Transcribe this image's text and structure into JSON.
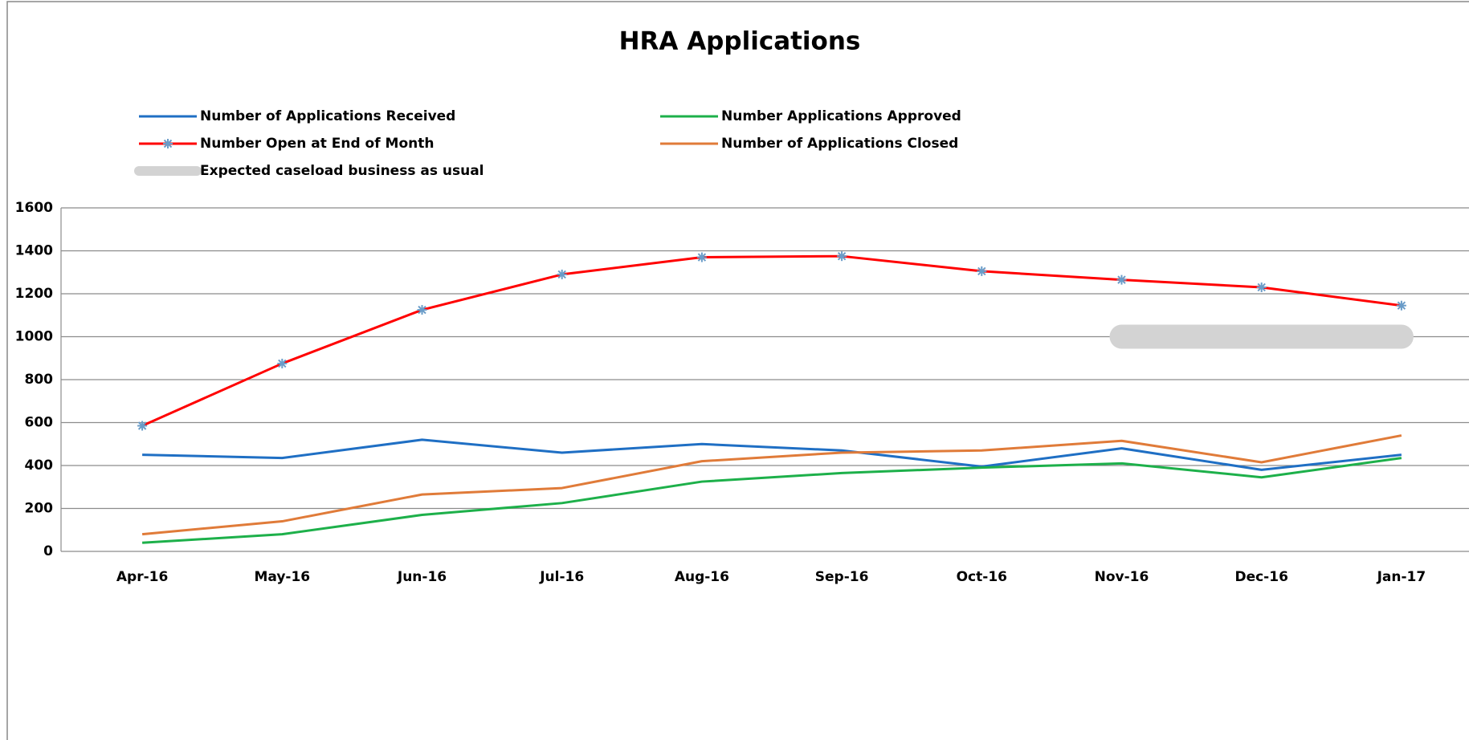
{
  "chart_data": {
    "type": "line",
    "title": "HRA Applications",
    "categories": [
      "Apr-16",
      "May-16",
      "Jun-16",
      "Jul-16",
      "Aug-16",
      "Sep-16",
      "Oct-16",
      "Nov-16",
      "Dec-16",
      "Jan-17"
    ],
    "series": [
      {
        "name": "Number of Applications Received",
        "color": "#1f6fc4",
        "values": [
          450,
          435,
          520,
          460,
          500,
          470,
          395,
          480,
          380,
          450
        ]
      },
      {
        "name": "Number Applications Approved",
        "color": "#1db04a",
        "values": [
          40,
          80,
          170,
          225,
          325,
          365,
          390,
          410,
          345,
          435
        ]
      },
      {
        "name": "Number Open at End of Month",
        "color": "#ff0000",
        "marker": "asterisk",
        "marker_color": "#6a9cc8",
        "values": [
          585,
          875,
          1125,
          1290,
          1370,
          1375,
          1305,
          1265,
          1230,
          1145
        ]
      },
      {
        "name": "Number of Applications Closed",
        "color": "#e07b39",
        "values": [
          80,
          140,
          265,
          295,
          420,
          460,
          470,
          515,
          415,
          540
        ]
      },
      {
        "name": "Expected caseload business as usual",
        "color": "#d3d3d3",
        "width": 30,
        "values": [
          null,
          null,
          null,
          null,
          null,
          null,
          null,
          1000,
          1000,
          1000
        ]
      }
    ],
    "ylim": [
      0,
      1600
    ],
    "yticks": [
      0,
      200,
      400,
      600,
      800,
      1000,
      1200,
      1400,
      1600
    ],
    "grid": true,
    "legend": "top"
  }
}
